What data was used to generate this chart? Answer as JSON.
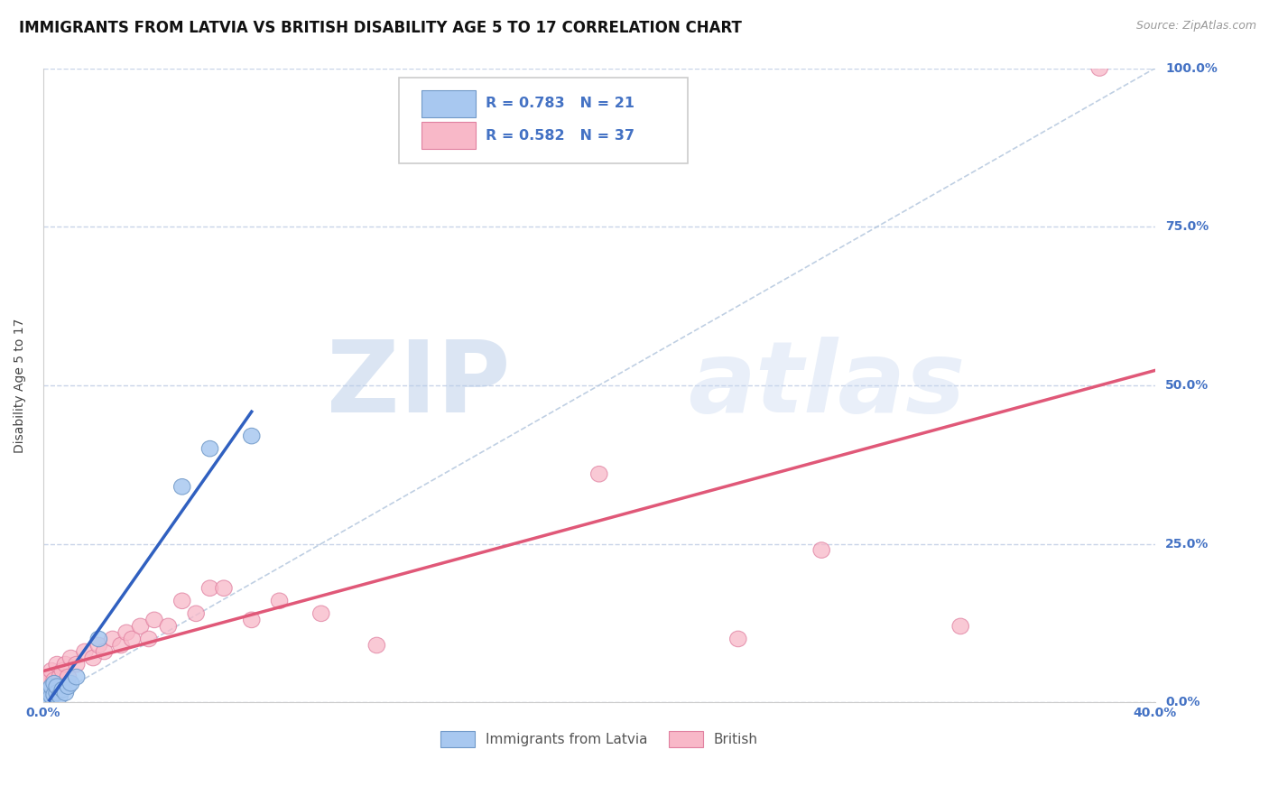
{
  "title": "IMMIGRANTS FROM LATVIA VS BRITISH DISABILITY AGE 5 TO 17 CORRELATION CHART",
  "source": "Source: ZipAtlas.com",
  "ylabel": "Disability Age 5 to 17",
  "xlim": [
    0.0,
    0.4
  ],
  "ylim": [
    0.0,
    1.0
  ],
  "xticks": [
    0.0,
    0.4
  ],
  "xticklabels": [
    "0.0%",
    "40.0%"
  ],
  "yticks": [
    0.0,
    0.25,
    0.5,
    0.75,
    1.0
  ],
  "yticklabels": [
    "0.0%",
    "25.0%",
    "50.0%",
    "75.0%",
    "100.0%"
  ],
  "blue_color": "#a8c8f0",
  "blue_edge_color": "#7099c8",
  "pink_color": "#f8b8c8",
  "pink_edge_color": "#e080a0",
  "blue_line_color": "#3060c0",
  "pink_line_color": "#e05878",
  "blue_R": 0.783,
  "blue_N": 21,
  "pink_R": 0.582,
  "pink_N": 37,
  "legend_label_blue": "Immigrants from Latvia",
  "legend_label_pink": "British",
  "watermark_zip": "ZIP",
  "watermark_atlas": "atlas",
  "blue_scatter_x": [
    0.0005,
    0.001,
    0.0015,
    0.002,
    0.002,
    0.003,
    0.003,
    0.004,
    0.004,
    0.005,
    0.005,
    0.006,
    0.007,
    0.008,
    0.009,
    0.01,
    0.012,
    0.02,
    0.05,
    0.06,
    0.075
  ],
  "blue_scatter_y": [
    0.005,
    0.01,
    0.015,
    0.008,
    0.02,
    0.01,
    0.025,
    0.012,
    0.03,
    0.015,
    0.025,
    0.01,
    0.02,
    0.015,
    0.025,
    0.03,
    0.04,
    0.1,
    0.34,
    0.4,
    0.42
  ],
  "pink_scatter_x": [
    0.0005,
    0.001,
    0.002,
    0.003,
    0.004,
    0.005,
    0.006,
    0.007,
    0.008,
    0.009,
    0.01,
    0.012,
    0.015,
    0.018,
    0.02,
    0.022,
    0.025,
    0.028,
    0.03,
    0.032,
    0.035,
    0.038,
    0.04,
    0.045,
    0.05,
    0.055,
    0.06,
    0.065,
    0.075,
    0.085,
    0.1,
    0.12,
    0.2,
    0.25,
    0.28,
    0.33,
    0.38
  ],
  "pink_scatter_y": [
    0.02,
    0.03,
    0.04,
    0.05,
    0.035,
    0.06,
    0.04,
    0.05,
    0.06,
    0.04,
    0.07,
    0.06,
    0.08,
    0.07,
    0.09,
    0.08,
    0.1,
    0.09,
    0.11,
    0.1,
    0.12,
    0.1,
    0.13,
    0.12,
    0.16,
    0.14,
    0.18,
    0.18,
    0.13,
    0.16,
    0.14,
    0.09,
    0.36,
    0.1,
    0.24,
    0.12,
    1.0
  ],
  "background_color": "#ffffff",
  "grid_color": "#c8d4e8",
  "title_fontsize": 12,
  "axis_label_fontsize": 10,
  "tick_fontsize": 10,
  "tick_color": "#4472c4",
  "legend_R_color": "#4472c4",
  "ref_line_color": "#b0c4dc"
}
